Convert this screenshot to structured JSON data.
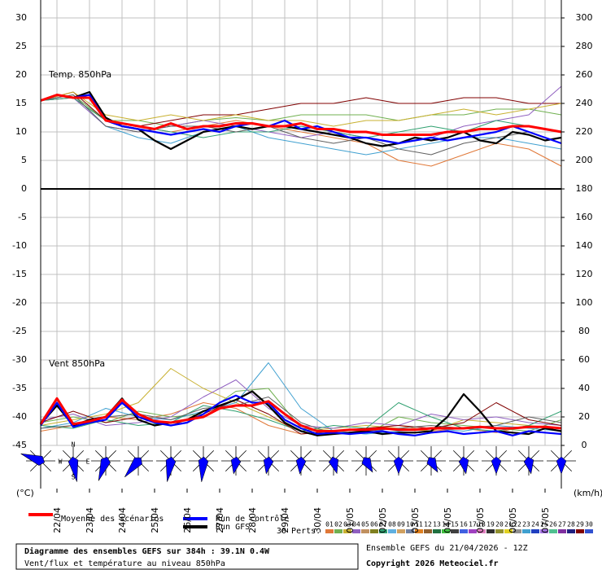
{
  "chart_data": {
    "type": "line",
    "xlim": [
      0,
      384
    ],
    "xticks": [
      {
        "value": 12,
        "label": "22/04"
      },
      {
        "value": 36,
        "label": "23/04"
      },
      {
        "value": 60,
        "label": "24/04"
      },
      {
        "value": 84,
        "label": "25/04"
      },
      {
        "value": 108,
        "label": "26/04"
      },
      {
        "value": 132,
        "label": "27/04"
      },
      {
        "value": 156,
        "label": "28/04"
      },
      {
        "value": 180,
        "label": "29/04"
      },
      {
        "value": 204,
        "label": "30/04"
      },
      {
        "value": 228,
        "label": "01/05"
      },
      {
        "value": 252,
        "label": "02/05"
      },
      {
        "value": 276,
        "label": "03/05"
      },
      {
        "value": 300,
        "label": "04/05"
      },
      {
        "value": 324,
        "label": "05/05"
      },
      {
        "value": 348,
        "label": "06/05"
      },
      {
        "value": 372,
        "label": "07/05"
      }
    ],
    "ylim": [
      -45,
      30
    ],
    "yticks": [
      30,
      25,
      20,
      15,
      10,
      5,
      0,
      -5,
      -10,
      -15,
      -20,
      -25,
      -30,
      -35,
      -40,
      -45
    ],
    "y2lim": [
      0,
      300
    ],
    "y2ticks": [
      300,
      280,
      260,
      240,
      220,
      200,
      180,
      160,
      140,
      120,
      100,
      80,
      60,
      40,
      20,
      0
    ],
    "grid": true,
    "panel_labels": [
      "Temp. 850hPa",
      "Vent 850hPa"
    ],
    "y_unit": "(°C)",
    "y2_unit": "(km/h)",
    "compass": [
      "N",
      "W",
      "E",
      "S"
    ],
    "x": [
      0,
      12,
      24,
      36,
      48,
      60,
      72,
      84,
      96,
      108,
      120,
      132,
      144,
      156,
      168,
      180,
      192,
      204,
      216,
      228,
      240,
      252,
      264,
      276,
      288,
      300,
      312,
      324,
      336,
      348,
      360,
      372,
      384
    ],
    "series": [
      {
        "name": "Moyenne des scénarios",
        "color": "#ff0000",
        "values": [
          15.5,
          16.5,
          16,
          16,
          12,
          11.5,
          11,
          10.5,
          11.5,
          10.5,
          11,
          11,
          11.5,
          11.5,
          11,
          11,
          11.5,
          10.5,
          10.5,
          10,
          10,
          9.5,
          9.5,
          9.5,
          9.5,
          10,
          10,
          10.5,
          10.5,
          11,
          11,
          10.5,
          10
        ]
      },
      {
        "name": "Run de contrôle",
        "color": "#0000ff",
        "values": [
          15.5,
          16.5,
          16,
          16.5,
          12,
          11,
          10.5,
          10,
          9.5,
          10,
          10.5,
          10,
          11,
          11.5,
          11,
          12,
          10.5,
          11,
          10,
          9,
          9,
          8.5,
          8,
          8.5,
          9,
          8.5,
          9,
          9.5,
          10,
          11,
          10,
          9,
          8
        ]
      },
      {
        "name": "Run GFS",
        "color": "#000000",
        "values": [
          15.5,
          16.5,
          16,
          17,
          12.5,
          11,
          10.5,
          8.5,
          7,
          8.5,
          10,
          10.5,
          11,
          10.5,
          11,
          11,
          10.5,
          10,
          9.5,
          9,
          8,
          7.5,
          8,
          9,
          8.5,
          9,
          10,
          8.5,
          8,
          10,
          9.5,
          8.5,
          9
        ]
      },
      {
        "color": "#ff0000",
        "axis": "y2",
        "values": [
          15,
          33,
          15,
          17,
          20,
          32,
          22,
          17,
          16,
          18,
          20,
          26,
          28,
          28,
          31,
          22,
          14,
          10,
          10,
          11,
          11,
          12,
          11,
          11,
          12,
          12,
          12,
          13,
          12,
          12,
          13,
          13,
          12
        ]
      },
      {
        "color": "#0000ff",
        "axis": "y2",
        "values": [
          14,
          30,
          13,
          16,
          18,
          30,
          20,
          16,
          14,
          16,
          22,
          30,
          35,
          30,
          30,
          18,
          12,
          8,
          9,
          8,
          9,
          10,
          8,
          7,
          9,
          10,
          8,
          9,
          10,
          7,
          10,
          9,
          8
        ]
      },
      {
        "color": "#000000",
        "axis": "y2",
        "values": [
          15,
          28,
          14,
          18,
          20,
          33,
          18,
          14,
          16,
          18,
          24,
          28,
          32,
          38,
          28,
          16,
          10,
          7,
          8,
          9,
          10,
          8,
          9,
          9,
          10,
          20,
          36,
          24,
          10,
          9,
          8,
          12,
          10
        ]
      }
    ],
    "pert_x": [
      0,
      24,
      48,
      72,
      96,
      120,
      144,
      168,
      192,
      216,
      240,
      264,
      288,
      312,
      336,
      360,
      384
    ],
    "perturbations": [
      {
        "color": "#e07838",
        "values": [
          15.5,
          16,
          12,
          11,
          10,
          11,
          12,
          11,
          10,
          9,
          8,
          5,
          4,
          6,
          8,
          7,
          4
        ]
      },
      {
        "color": "#70b050",
        "values": [
          15.5,
          16.5,
          12,
          12,
          11,
          12,
          12.5,
          12,
          13,
          13,
          13,
          12,
          13,
          13,
          14,
          14,
          13
        ]
      },
      {
        "color": "#800000",
        "values": [
          15.5,
          17,
          12,
          11,
          12,
          13,
          13,
          14,
          15,
          15,
          16,
          15,
          15,
          16,
          16,
          15,
          15
        ]
      },
      {
        "color": "#9060c0",
        "values": [
          15.5,
          16,
          11,
          10,
          11,
          12,
          11,
          10,
          9,
          10,
          9,
          8,
          9,
          11,
          12,
          13,
          18
        ]
      },
      {
        "color": "#40a0d0",
        "values": [
          15.5,
          16.5,
          11,
          9,
          8,
          10,
          11,
          9,
          8,
          7,
          6,
          7,
          8,
          9,
          9,
          8,
          7
        ]
      },
      {
        "color": "#c8b030",
        "values": [
          15.5,
          17,
          13,
          12,
          13,
          12,
          13,
          12,
          12,
          11,
          12,
          12,
          13,
          14,
          13,
          14,
          15
        ]
      },
      {
        "color": "#30a070",
        "values": [
          15.5,
          16,
          12,
          11,
          10,
          9,
          10,
          10,
          11,
          10,
          9,
          10,
          11,
          10,
          12,
          11,
          10
        ]
      },
      {
        "color": "#606060",
        "values": [
          15.5,
          16.5,
          11,
          10,
          11,
          11,
          10,
          11,
          9,
          8,
          9,
          7,
          6,
          8,
          9,
          10,
          8
        ]
      },
      {
        "color": "#e07838",
        "axis": "y2",
        "values": [
          10,
          14,
          20,
          18,
          22,
          30,
          26,
          14,
          8,
          10,
          12,
          14,
          10,
          12,
          9,
          14,
          10
        ]
      },
      {
        "color": "#70b050",
        "axis": "y2",
        "values": [
          16,
          20,
          16,
          24,
          20,
          22,
          38,
          40,
          12,
          10,
          8,
          20,
          16,
          14,
          12,
          10,
          18
        ]
      },
      {
        "color": "#c8b030",
        "axis": "y2",
        "values": [
          14,
          18,
          22,
          30,
          54,
          40,
          30,
          20,
          10,
          12,
          14,
          12,
          10,
          18,
          16,
          14,
          12
        ]
      },
      {
        "color": "#40a0d0",
        "axis": "y2",
        "values": [
          12,
          16,
          26,
          20,
          18,
          24,
          30,
          58,
          26,
          10,
          8,
          10,
          12,
          10,
          14,
          12,
          10
        ]
      },
      {
        "color": "#9060c0",
        "axis": "y2",
        "values": [
          18,
          22,
          14,
          16,
          20,
          34,
          46,
          26,
          14,
          12,
          16,
          14,
          22,
          18,
          20,
          16,
          14
        ]
      },
      {
        "color": "#30a070",
        "axis": "y2",
        "values": [
          14,
          12,
          18,
          14,
          16,
          28,
          24,
          18,
          10,
          14,
          12,
          30,
          20,
          12,
          10,
          14,
          24
        ]
      },
      {
        "color": "#800000",
        "axis": "y2",
        "values": [
          16,
          24,
          16,
          20,
          14,
          22,
          32,
          22,
          8,
          10,
          12,
          14,
          12,
          16,
          30,
          18,
          14
        ]
      },
      {
        "color": "#606060",
        "axis": "y2",
        "values": [
          12,
          14,
          20,
          22,
          18,
          26,
          28,
          34,
          16,
          8,
          10,
          12,
          14,
          12,
          14,
          20,
          16
        ]
      }
    ],
    "pert_legend": {
      "title": "30 Perts.",
      "labels": [
        "01",
        "02",
        "03",
        "04",
        "05",
        "06",
        "07",
        "08",
        "09",
        "10",
        "11",
        "12",
        "13",
        "14",
        "15",
        "16",
        "17",
        "18",
        "19",
        "20",
        "21",
        "22",
        "23",
        "24",
        "25",
        "26",
        "27",
        "28",
        "29",
        "30"
      ],
      "colors": [
        "#e07838",
        "#70b050",
        "#c8b030",
        "#9060c0",
        "#c09060",
        "#808020",
        "#30a070",
        "#60b0e0",
        "#d0a060",
        "#7080a0",
        "#e08020",
        "#906030",
        "#207040",
        "#40c040",
        "#404040",
        "#4060e0",
        "#a040c0",
        "#e080c0",
        "#303030",
        "#909030",
        "#e0d020",
        "#909090",
        "#40a0d0",
        "#2040c0",
        "#a070e0",
        "#50c090",
        "#8030a0",
        "#202080",
        "#800000",
        "#3050d0"
      ]
    },
    "footer": {
      "title": "Diagramme des ensembles GEFS sur 384h : 39.1N 0.4W",
      "subtitle": "Vent/flux et température au niveau 850hPa",
      "run": "Ensemble GEFS du 21/04/2026 - 12Z",
      "copyright": "Copyright 2026 Meteociel.fr"
    }
  }
}
